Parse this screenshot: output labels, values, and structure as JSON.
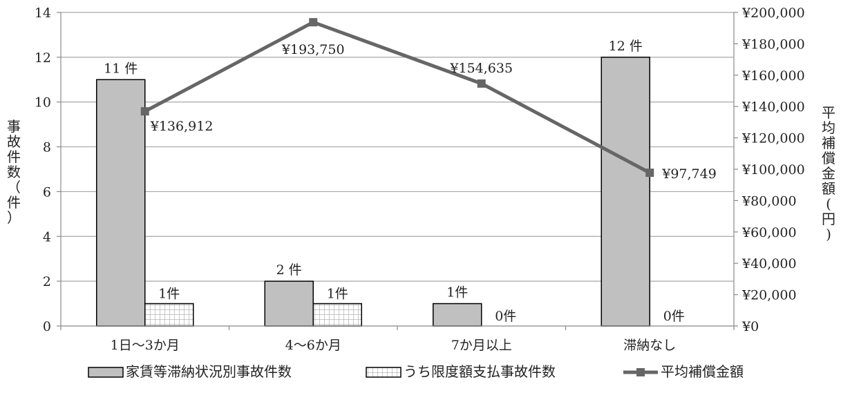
{
  "chart_data": {
    "type": "bar+line",
    "categories": [
      "1日～3か月",
      "4～6か月",
      "7か月以上",
      "滞納なし"
    ],
    "series": [
      {
        "name": "家賃等滞納状況別事故件数",
        "type": "bar",
        "axis": "left",
        "pattern": "solid-gray",
        "values": [
          11,
          2,
          1,
          12
        ],
        "labels": [
          "11 件",
          "2 件",
          "1件",
          "12 件"
        ]
      },
      {
        "name": "うち限度額支払事故件数",
        "type": "bar",
        "axis": "left",
        "pattern": "grid-hatch",
        "values": [
          1,
          1,
          0,
          0
        ],
        "labels": [
          "1件",
          "1件",
          "0件",
          "0件"
        ]
      },
      {
        "name": "平均補償金額",
        "type": "line",
        "axis": "right",
        "values": [
          136912,
          193750,
          154635,
          97749
        ],
        "labels": [
          "¥136,912",
          "¥193,750",
          "¥154,635",
          "¥97,749"
        ]
      }
    ],
    "y_left": {
      "label": "事故件数（件）",
      "range": [
        0,
        14
      ],
      "ticks": [
        "0",
        "2",
        "4",
        "6",
        "8",
        "10",
        "12",
        "14"
      ]
    },
    "y_right": {
      "label": "平均補償金額(円)",
      "range": [
        0,
        200000
      ],
      "ticks": [
        "¥0",
        "¥20,000",
        "¥40,000",
        "¥60,000",
        "¥80,000",
        "¥100,000",
        "¥120,000",
        "¥140,000",
        "¥160,000",
        "¥180,000",
        "¥200,000"
      ]
    },
    "grid": true,
    "legend_position": "bottom",
    "colors": {
      "bar1_fill": "#c0c0c0",
      "bar2_fill": "#ffffff",
      "bar2_hatch": "#a6a6a6",
      "line": "#666666",
      "grid": "#a6a6a6",
      "axis": "#888888",
      "outline": "#000000"
    }
  }
}
